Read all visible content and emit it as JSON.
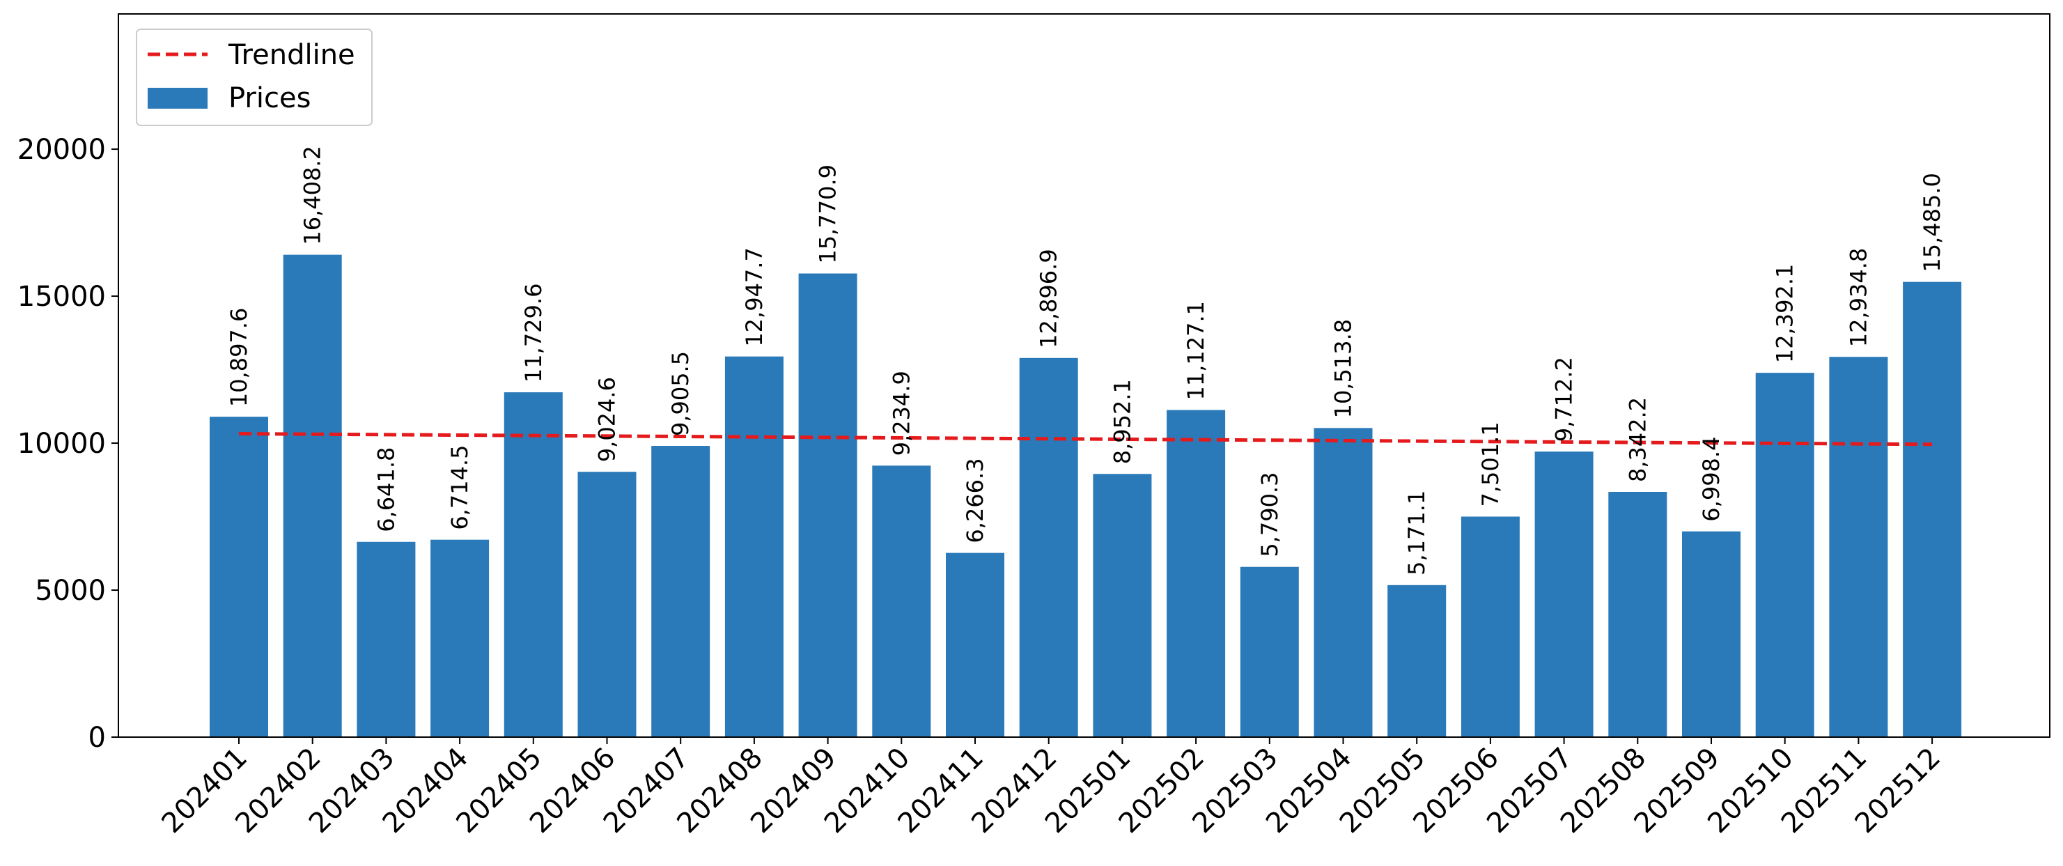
{
  "chart_data": {
    "type": "bar",
    "categories": [
      "202401",
      "202402",
      "202403",
      "202404",
      "202405",
      "202406",
      "202407",
      "202408",
      "202409",
      "202410",
      "202411",
      "202412",
      "202501",
      "202502",
      "202503",
      "202504",
      "202505",
      "202506",
      "202507",
      "202508",
      "202509",
      "202510",
      "202511",
      "202512"
    ],
    "series": [
      {
        "name": "Prices",
        "values": [
          10897.6,
          16408.2,
          6641.8,
          6714.5,
          11729.6,
          9024.6,
          9905.5,
          12947.7,
          15770.9,
          9234.9,
          6266.3,
          12896.9,
          8952.1,
          11127.1,
          5790.3,
          10513.8,
          5171.1,
          7501.1,
          9712.2,
          8342.2,
          6998.4,
          12392.1,
          12934.8,
          15485.0
        ],
        "color": "#2a7ab9"
      }
    ],
    "data_labels": [
      "10,897.6",
      "16,408.2",
      "6,641.8",
      "6,714.5",
      "11,729.6",
      "9,024.6",
      "9,905.5",
      "12,947.7",
      "15,770.9",
      "9,234.9",
      "6,266.3",
      "12,896.9",
      "8,952.1",
      "11,127.1",
      "5,790.3",
      "10,513.8",
      "5,171.1",
      "7,501.1",
      "9,712.2",
      "8,342.2",
      "6,998.4",
      "12,392.1",
      "12,934.8",
      "15,485.0"
    ],
    "trendline": {
      "name": "Trendline",
      "start": 10320,
      "end": 9960,
      "color": "#e41a1c",
      "style": "dashed"
    },
    "y_ticks": [
      "0",
      "5000",
      "10000",
      "15000",
      "20000"
    ],
    "ylim": [
      0,
      24600
    ],
    "title": "",
    "xlabel": "",
    "ylabel": "",
    "legend_placement": "top-left",
    "grid": false
  }
}
